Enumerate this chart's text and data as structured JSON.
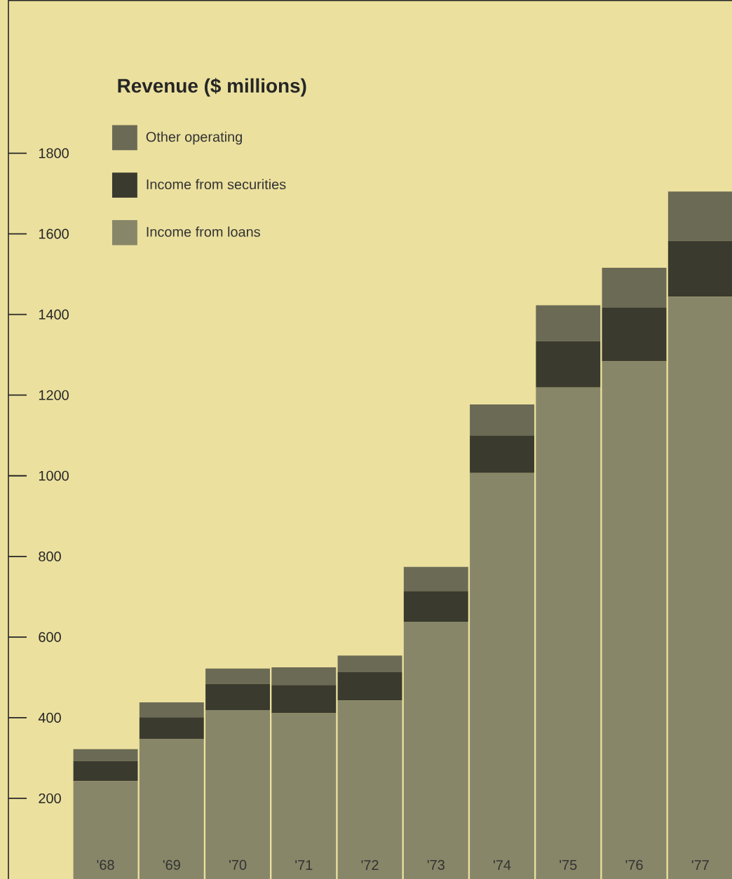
{
  "chart_data": {
    "type": "bar",
    "title": "Revenue ($ millions)",
    "stacked": true,
    "legend": "top left",
    "categories": [
      "'68",
      "'69",
      "'70",
      "'71",
      "'72",
      "'73",
      "'74",
      "'75",
      "'76",
      "'77"
    ],
    "series": [
      {
        "name": "Income from loans",
        "color": "#878668",
        "values": [
          243,
          347,
          419,
          411,
          443,
          638,
          1007,
          1219,
          1284,
          1444
        ]
      },
      {
        "name": "Income from securities",
        "color": "#3a3a2e",
        "values": [
          50,
          54,
          65,
          70,
          70,
          76,
          93,
          115,
          133,
          139
        ]
      },
      {
        "name": "Other operating",
        "color": "#6b6a55",
        "values": [
          29,
          37,
          38,
          44,
          41,
          60,
          77,
          89,
          99,
          122
        ]
      }
    ],
    "ylim": [
      0,
      2180
    ],
    "yticks": [
      200,
      400,
      600,
      800,
      1000,
      1200,
      1400,
      1600,
      1800
    ]
  }
}
